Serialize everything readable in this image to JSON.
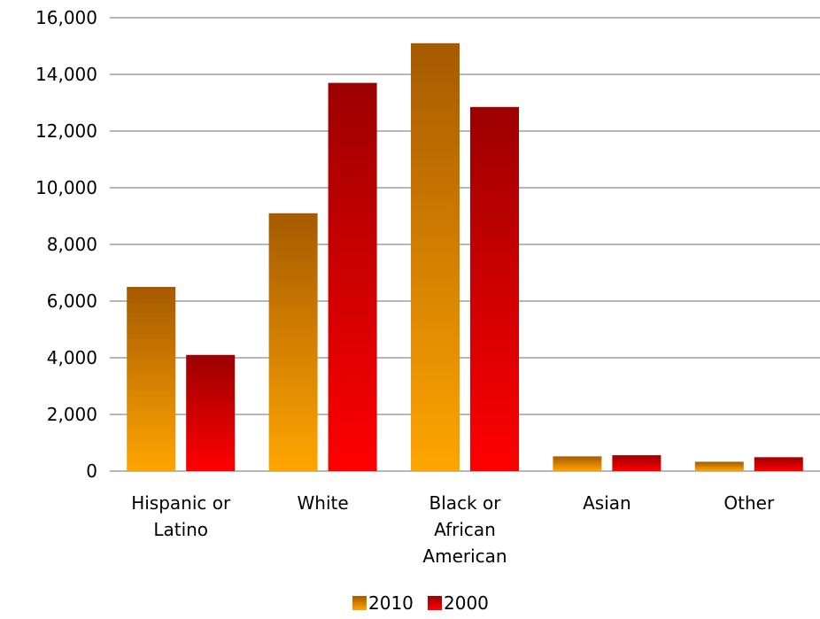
{
  "chart_data": {
    "type": "bar",
    "categories": [
      [
        "Hispanic or",
        "Latino"
      ],
      [
        "White"
      ],
      [
        "Black or",
        "African",
        "American"
      ],
      [
        "Asian"
      ],
      [
        "Other"
      ]
    ],
    "series": [
      {
        "name": "2010",
        "values": [
          6500,
          9100,
          15100,
          520,
          330
        ],
        "color_top": "#a65a00",
        "color_bottom": "#ffa500"
      },
      {
        "name": "2000",
        "values": [
          4100,
          13700,
          12850,
          560,
          490
        ],
        "color_top": "#9c0000",
        "color_bottom": "#ff0000"
      }
    ],
    "y_ticks": [
      "0",
      "2,000",
      "4,000",
      "6,000",
      "8,000",
      "10,000",
      "12,000",
      "14,000",
      "16,000"
    ],
    "ylim": [
      0,
      16000
    ],
    "grid": true,
    "legend_position": "bottom"
  }
}
